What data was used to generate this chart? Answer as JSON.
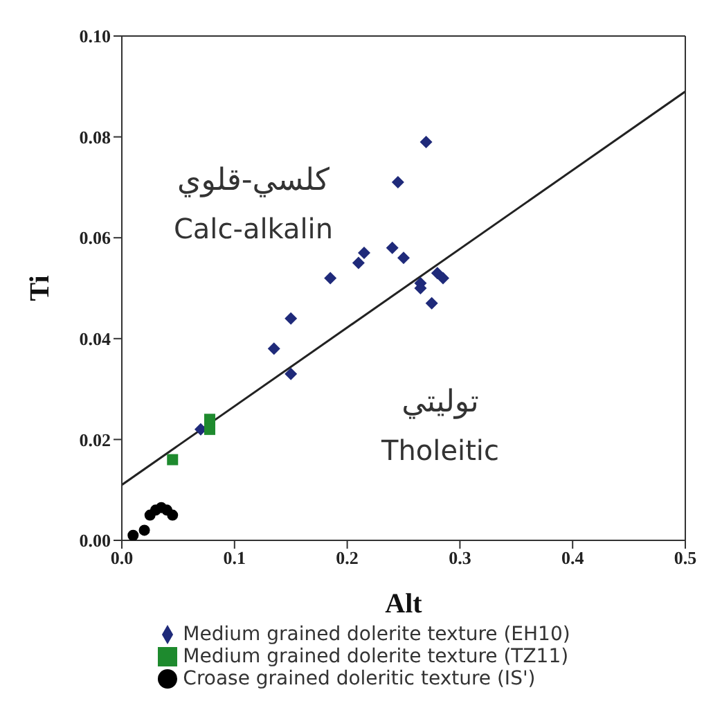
{
  "chart_data": {
    "type": "scatter",
    "xlabel": "Alt",
    "ylabel": "Ti",
    "xlim": [
      0,
      0.5
    ],
    "xticks": [
      {
        "value": 0,
        "label": "0.0"
      },
      {
        "value": 0.1,
        "label": "0.1"
      },
      {
        "value": 0.2,
        "label": "0.2"
      },
      {
        "value": 0.3,
        "label": "0.3"
      },
      {
        "value": 0.4,
        "label": "0.4"
      },
      {
        "value": 0.5,
        "label": "0.5"
      }
    ],
    "ylim": [
      0,
      0.1
    ],
    "yticks": [
      {
        "value": 0,
        "label": "0.00"
      },
      {
        "value": 0.02,
        "label": "0.02"
      },
      {
        "value": 0.04,
        "label": "0.04"
      },
      {
        "value": 0.06,
        "label": "0.06"
      },
      {
        "value": 0.08,
        "label": "0.08"
      },
      {
        "value": 0.1,
        "label": "0.10"
      }
    ],
    "legend": "bottom",
    "annotations": [
      "كلسي-قلوي",
      "Calc-alkalin",
      "توليتي",
      "Tholeitic"
    ],
    "series": [
      {
        "name": "Medium grained dolerite texture (EH10)",
        "color": "#1f2a7a",
        "marker": "diamond",
        "x": [
          0.27,
          0.245,
          0.24,
          0.25,
          0.215,
          0.21,
          0.185,
          0.265,
          0.265,
          0.28,
          0.285,
          0.275,
          0.15,
          0.135,
          0.15,
          0.07
        ],
        "values": [
          0.079,
          0.071,
          0.058,
          0.056,
          0.057,
          0.055,
          0.052,
          0.051,
          0.05,
          0.053,
          0.052,
          0.047,
          0.044,
          0.038,
          0.033,
          0.022
        ]
      },
      {
        "name": "Medium grained dolerite texture (TZ11)",
        "color": "#1e8a2e",
        "marker": "square",
        "x": [
          0.045,
          0.078,
          0.078
        ],
        "values": [
          0.016,
          0.024,
          0.022
        ]
      },
      {
        "name": "Croase grained doleritic texture (IS')",
        "color": "#000000",
        "marker": "circle",
        "x": [
          0.01,
          0.02,
          0.025,
          0.03,
          0.035,
          0.04,
          0.045
        ],
        "values": [
          0.001,
          0.002,
          0.005,
          0.006,
          0.0065,
          0.006,
          0.005
        ]
      },
      {
        "type": "line",
        "color": "#222222",
        "marker": "none",
        "x": [
          0,
          0.5
        ],
        "values": [
          0.011,
          0.089
        ]
      }
    ]
  }
}
